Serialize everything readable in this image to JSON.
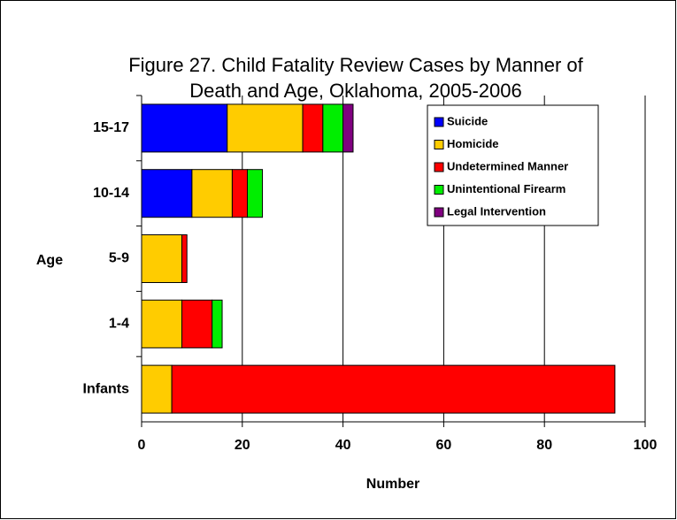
{
  "chart_data": {
    "type": "bar",
    "orientation": "horizontal",
    "stacked": true,
    "title": [
      "Figure 27. Child Fatality Review Cases by Manner of",
      "Death and Age, Oklahoma, 2005-2006"
    ],
    "xlabel": "Number",
    "ylabel": "Age",
    "categories": [
      "15-17",
      "10-14",
      "5-9",
      "1-4",
      "Infants"
    ],
    "series": [
      {
        "name": "Suicide",
        "color": "#0000ff",
        "values": [
          17,
          10,
          0,
          0,
          0
        ]
      },
      {
        "name": "Homicide",
        "color": "#ffcc00",
        "values": [
          15,
          8,
          8,
          8,
          6
        ]
      },
      {
        "name": "Undetermined Manner",
        "color": "#ff0000",
        "values": [
          4,
          3,
          1,
          6,
          88
        ]
      },
      {
        "name": "Unintentional Firearm",
        "color": "#00ee00",
        "values": [
          4,
          3,
          0,
          2,
          0
        ]
      },
      {
        "name": "Legal Intervention",
        "color": "#800080",
        "values": [
          2,
          0,
          0,
          0,
          0
        ]
      }
    ],
    "xlim": [
      0,
      100
    ],
    "xticks": [
      0,
      20,
      40,
      60,
      80,
      100
    ],
    "grid": true,
    "legend": "upper right"
  }
}
